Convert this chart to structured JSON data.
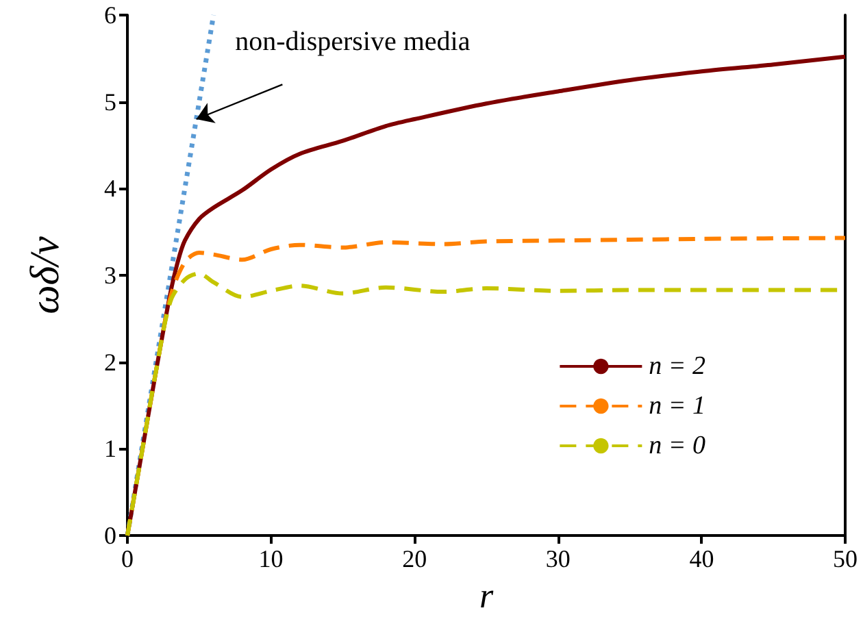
{
  "chart_data": {
    "type": "line",
    "xlabel": "r",
    "ylabel": "ωδ/v",
    "xlim": [
      0,
      50
    ],
    "xticks": [
      0,
      10,
      20,
      30,
      40,
      50
    ],
    "ylim": [
      0,
      6
    ],
    "yticks": [
      0,
      1,
      2,
      3,
      4,
      5,
      6
    ],
    "grid": false,
    "legend": "bottom right",
    "marker": "none",
    "annotations": [
      {
        "text": "non-dispersive media",
        "x": 4.8,
        "y": 4.8
      }
    ],
    "series": [
      {
        "name": "n = 2",
        "color": "#7f0000",
        "line_style": "solid",
        "x": [
          0,
          1,
          2,
          3,
          3.5,
          4,
          5,
          6,
          8,
          10,
          12,
          15,
          18,
          20,
          25,
          30,
          35,
          40,
          45,
          50
        ],
        "values": [
          0,
          0.95,
          1.9,
          2.8,
          3.15,
          3.4,
          3.65,
          3.78,
          3.98,
          4.22,
          4.4,
          4.55,
          4.72,
          4.8,
          4.98,
          5.12,
          5.25,
          5.35,
          5.43,
          5.52
        ]
      },
      {
        "name": "n = 1",
        "color": "#ff8000",
        "line_style": "dashed",
        "x": [
          0,
          1,
          2,
          3,
          4,
          5,
          6,
          8,
          10,
          12,
          15,
          18,
          22,
          25,
          30,
          35,
          40,
          50
        ],
        "values": [
          0,
          0.95,
          1.9,
          2.75,
          3.15,
          3.26,
          3.24,
          3.18,
          3.3,
          3.35,
          3.32,
          3.38,
          3.36,
          3.39,
          3.4,
          3.41,
          3.42,
          3.43
        ]
      },
      {
        "name": "n = 0",
        "color": "#c5c500",
        "line_style": "dashed",
        "x": [
          0,
          1,
          2,
          3,
          4,
          5,
          6,
          8,
          10,
          12,
          15,
          18,
          22,
          25,
          30,
          35,
          40,
          50
        ],
        "values": [
          0,
          0.95,
          1.9,
          2.7,
          2.95,
          3.02,
          2.92,
          2.75,
          2.82,
          2.88,
          2.79,
          2.86,
          2.81,
          2.85,
          2.82,
          2.83,
          2.83,
          2.83
        ]
      },
      {
        "color": "#5b9bd5",
        "line_style": "dotted",
        "x": [
          0,
          6
        ],
        "values": [
          0,
          6
        ]
      }
    ]
  }
}
